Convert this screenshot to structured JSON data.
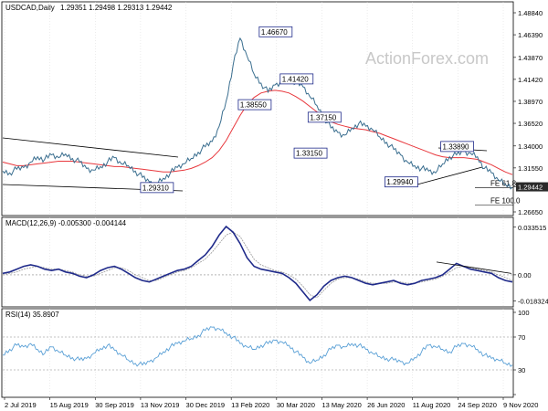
{
  "header": {
    "symbol": "USDCAD,Daily",
    "ohlc": "1.29351 1.29498 1.29313 1.29442"
  },
  "watermark": "ActionForex.com",
  "colors": {
    "price": "#3a6e8f",
    "ma": "#e8383d",
    "macd": "#1f2a8a",
    "signal": "#999999",
    "rsi": "#5aa0d6",
    "trend": "#000000",
    "box_border": "#1f2a8a",
    "current_tag_bg": "#2a2a2a"
  },
  "chart_data": [
    {
      "type": "line",
      "name": "price",
      "x_labels": [
        "2 Jul 2019",
        "15 Aug 2019",
        "30 Sep 2019",
        "13 Nov 2019",
        "30 Dec 2019",
        "13 Feb 2020",
        "30 Mar 2020",
        "13 May 2020",
        "26 Jun 2020",
        "11 Aug 2020",
        "24 Sep 2020",
        "9 Nov 2020"
      ],
      "y_ticks": [
        "1.48840",
        "1.46390",
        "1.43870",
        "1.41420",
        "1.38970",
        "1.36520",
        "1.34000",
        "1.31550",
        "1.29442",
        "1.26650"
      ],
      "ylim": [
        1.2665,
        1.4884
      ],
      "current": "1.29442",
      "series": [
        {
          "name": "close",
          "values": [
            1.312,
            1.31,
            1.314,
            1.316,
            1.322,
            1.328,
            1.325,
            1.33,
            1.327,
            1.331,
            1.326,
            1.322,
            1.315,
            1.313,
            1.317,
            1.322,
            1.327,
            1.32,
            1.318,
            1.312,
            1.305,
            1.3,
            1.298,
            1.304,
            1.31,
            1.316,
            1.32,
            1.326,
            1.333,
            1.339,
            1.345,
            1.362,
            1.39,
            1.43,
            1.46,
            1.44,
            1.42,
            1.41,
            1.4,
            1.408,
            1.412,
            1.418,
            1.41,
            1.406,
            1.395,
            1.385,
            1.372,
            1.36,
            1.355,
            1.352,
            1.36,
            1.365,
            1.362,
            1.358,
            1.35,
            1.344,
            1.336,
            1.33,
            1.322,
            1.318,
            1.315,
            1.312,
            1.31,
            1.32,
            1.328,
            1.33,
            1.334,
            1.332,
            1.328,
            1.315,
            1.31,
            1.302,
            1.297,
            1.294
          ]
        },
        {
          "name": "ma",
          "values": [
            1.322,
            1.32,
            1.318,
            1.318,
            1.319,
            1.32,
            1.321,
            1.322,
            1.323,
            1.323,
            1.323,
            1.322,
            1.321,
            1.32,
            1.319,
            1.318,
            1.317,
            1.317,
            1.316,
            1.315,
            1.314,
            1.313,
            1.312,
            1.311,
            1.311,
            1.312,
            1.313,
            1.315,
            1.318,
            1.322,
            1.327,
            1.335,
            1.346,
            1.36,
            1.374,
            1.386,
            1.394,
            1.399,
            1.401,
            1.402,
            1.401,
            1.399,
            1.395,
            1.39,
            1.384,
            1.378,
            1.372,
            1.367,
            1.364,
            1.362,
            1.36,
            1.359,
            1.358,
            1.356,
            1.354,
            1.351,
            1.348,
            1.345,
            1.342,
            1.339,
            1.336,
            1.333,
            1.33,
            1.328,
            1.327,
            1.327,
            1.327,
            1.326,
            1.325,
            1.322,
            1.319,
            1.315,
            1.311,
            1.308
          ]
        }
      ],
      "annotations": [
        {
          "text": "1.46670",
          "x": 37,
          "y": 1.4667
        },
        {
          "text": "1.38550",
          "x": 34,
          "y": 1.3855
        },
        {
          "text": "1.41420",
          "x": 40,
          "y": 1.4142
        },
        {
          "text": "1.37150",
          "x": 44,
          "y": 1.3715
        },
        {
          "text": "1.33150",
          "x": 42,
          "y": 1.3315
        },
        {
          "text": "1.29310",
          "x": 20,
          "y": 1.2931
        },
        {
          "text": "1.29940",
          "x": 55,
          "y": 1.2994
        },
        {
          "text": "1.33890",
          "x": 63,
          "y": 1.3389
        }
      ],
      "fibo_labels": [
        {
          "text": "FE 61.8",
          "y": 1.2935
        },
        {
          "text": "FE 100.0",
          "y": 1.274
        }
      ]
    },
    {
      "type": "line",
      "name": "MACD",
      "title": "MACD(12,26,9) -0.005300 -0.004144",
      "y_ticks": [
        "0.033515",
        "0.00",
        "-0.018324"
      ],
      "ylim": [
        -0.02,
        0.034
      ],
      "series": [
        {
          "name": "macd",
          "values": [
            0.001,
            0.002,
            0.004,
            0.006,
            0.007,
            0.006,
            0.004,
            0.003,
            0.004,
            0.002,
            0.001,
            -0.001,
            -0.002,
            0.0,
            0.003,
            0.005,
            0.006,
            0.004,
            0.001,
            -0.002,
            -0.004,
            -0.005,
            -0.003,
            -0.001,
            0.001,
            0.003,
            0.004,
            0.006,
            0.01,
            0.014,
            0.02,
            0.028,
            0.034,
            0.03,
            0.022,
            0.012,
            0.006,
            0.004,
            0.003,
            0.002,
            0.001,
            -0.002,
            -0.006,
            -0.012,
            -0.018,
            -0.014,
            -0.008,
            -0.004,
            -0.002,
            -0.001,
            -0.002,
            -0.004,
            -0.006,
            -0.007,
            -0.006,
            -0.005,
            -0.004,
            -0.006,
            -0.007,
            -0.006,
            -0.004,
            -0.003,
            -0.002,
            0.0,
            0.004,
            0.008,
            0.006,
            0.004,
            0.003,
            0.002,
            0.001,
            -0.002,
            -0.004,
            -0.005
          ]
        },
        {
          "name": "signal",
          "values": [
            0.0,
            0.001,
            0.002,
            0.004,
            0.005,
            0.006,
            0.005,
            0.004,
            0.004,
            0.003,
            0.002,
            0.0,
            -0.001,
            -0.001,
            0.001,
            0.003,
            0.005,
            0.005,
            0.003,
            0.0,
            -0.002,
            -0.004,
            -0.004,
            -0.002,
            0.0,
            0.002,
            0.003,
            0.005,
            0.008,
            0.011,
            0.016,
            0.022,
            0.028,
            0.03,
            0.027,
            0.019,
            0.011,
            0.007,
            0.005,
            0.003,
            0.002,
            0.0,
            -0.003,
            -0.008,
            -0.014,
            -0.016,
            -0.011,
            -0.006,
            -0.003,
            -0.002,
            -0.002,
            -0.003,
            -0.005,
            -0.006,
            -0.006,
            -0.006,
            -0.005,
            -0.005,
            -0.006,
            -0.006,
            -0.005,
            -0.004,
            -0.003,
            -0.001,
            0.002,
            0.005,
            0.006,
            0.005,
            0.004,
            0.003,
            0.002,
            0.0,
            -0.002,
            -0.004
          ]
        }
      ]
    },
    {
      "type": "line",
      "name": "RSI",
      "title": "RSI(14) 35.8907",
      "y_ticks": [
        "100",
        "70",
        "30",
        "0"
      ],
      "ylim": [
        0,
        100
      ],
      "series": [
        {
          "name": "rsi",
          "values": [
            48,
            55,
            60,
            58,
            62,
            55,
            50,
            58,
            52,
            48,
            45,
            42,
            44,
            50,
            56,
            60,
            54,
            48,
            42,
            38,
            36,
            40,
            45,
            52,
            58,
            62,
            65,
            68,
            72,
            78,
            82,
            80,
            75,
            70,
            62,
            58,
            55,
            60,
            62,
            66,
            64,
            60,
            52,
            45,
            38,
            42,
            48,
            55,
            60,
            58,
            62,
            60,
            55,
            50,
            46,
            44,
            42,
            40,
            38,
            45,
            52,
            60,
            58,
            55,
            52,
            58,
            62,
            60,
            55,
            48,
            44,
            42,
            38,
            36
          ]
        }
      ]
    }
  ]
}
